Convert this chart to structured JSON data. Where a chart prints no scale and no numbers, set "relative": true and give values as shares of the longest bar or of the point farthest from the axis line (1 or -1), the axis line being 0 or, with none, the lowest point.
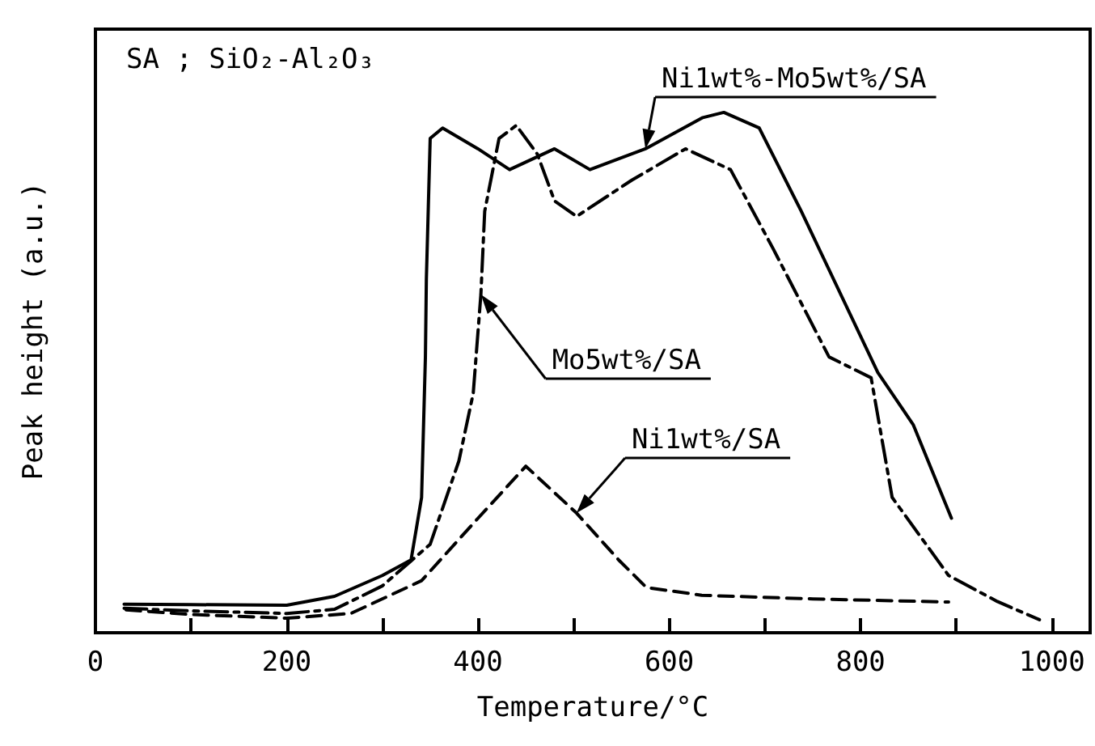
{
  "chart_data": {
    "type": "line",
    "relative": true,
    "xlabel": "Temperature/°C",
    "ylabel": "Peak height (a.u.)",
    "annotations": [
      "SA ; SiO₂-Al₂O₃"
    ],
    "xlim": [
      0,
      1040
    ],
    "xticks": [
      0,
      {
        "value": 100,
        "label": null
      },
      200,
      {
        "value": 300,
        "label": null
      },
      400,
      {
        "value": 500,
        "label": null
      },
      600,
      {
        "value": 700,
        "label": null
      },
      800,
      {
        "value": 900,
        "label": null
      },
      1000
    ],
    "marker": "none",
    "grid": false,
    "legend": false,
    "series": [
      {
        "name": "Ni1wt%-Mo5wt%/SA",
        "color": "#000000",
        "line_style": "solid",
        "x": [
          30,
          100,
          200,
          250,
          300,
          330,
          341,
          345,
          346,
          350,
          363,
          400,
          433,
          480,
          517,
          575,
          635,
          657,
          694,
          738,
          818,
          855,
          895
        ],
        "values": [
          0.055,
          0.054,
          0.053,
          0.07,
          0.11,
          0.14,
          0.26,
          0.53,
          0.68,
          0.95,
          0.97,
          0.93,
          0.89,
          0.93,
          0.89,
          0.93,
          0.99,
          1.0,
          0.97,
          0.81,
          0.5,
          0.4,
          0.22
        ]
      },
      {
        "name": "Mo5wt%/SA",
        "color": "#000000",
        "line_style": "dashdot",
        "x": [
          30,
          100,
          200,
          250,
          300,
          350,
          380,
          395,
          403,
          407,
          422,
          440,
          462,
          480,
          503,
          561,
          617,
          664,
          708,
          767,
          811,
          833,
          892,
          943,
          987
        ],
        "values": [
          0.047,
          0.042,
          0.037,
          0.045,
          0.09,
          0.17,
          0.33,
          0.46,
          0.65,
          0.81,
          0.95,
          0.975,
          0.92,
          0.83,
          0.8,
          0.87,
          0.93,
          0.89,
          0.74,
          0.53,
          0.49,
          0.26,
          0.11,
          0.06,
          0.025
        ]
      },
      {
        "name": "Ni1wt%/SA",
        "color": "#000000",
        "line_style": "dashed",
        "x": [
          32,
          100,
          200,
          267,
          341,
          400,
          450,
          503,
          547,
          576,
          634,
          750,
          892
        ],
        "values": [
          0.044,
          0.035,
          0.028,
          0.037,
          0.1,
          0.22,
          0.32,
          0.23,
          0.14,
          0.087,
          0.072,
          0.065,
          0.059
        ]
      }
    ]
  }
}
